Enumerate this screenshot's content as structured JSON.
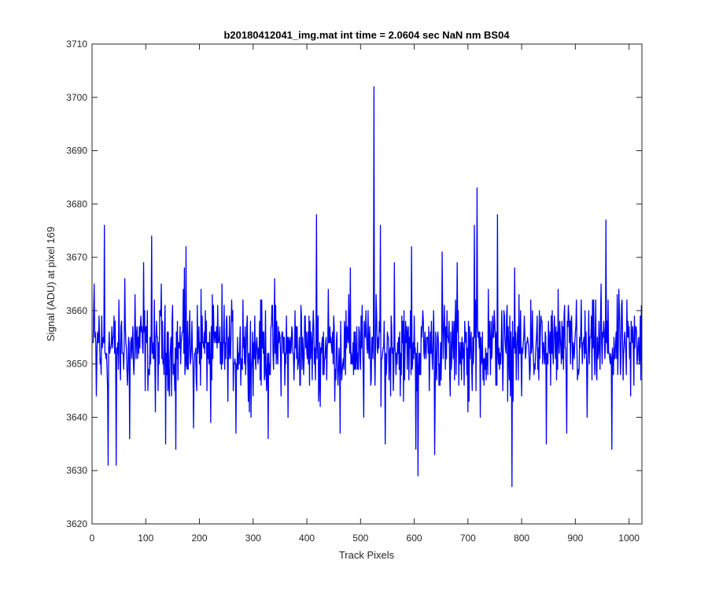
{
  "chart_data": {
    "type": "line",
    "title": "b20180412041_img.mat int time = 2.0604 sec  NaN nm BS04",
    "xlabel": "Track Pixels",
    "ylabel": "Signal (ADU) at pixel 169",
    "xlim": [
      0,
      1024
    ],
    "ylim": [
      3620,
      3710
    ],
    "xticks": [
      0,
      100,
      200,
      300,
      400,
      500,
      600,
      700,
      800,
      900,
      1000
    ],
    "yticks": [
      3620,
      3630,
      3640,
      3650,
      3660,
      3670,
      3680,
      3690,
      3700,
      3710
    ],
    "grid": false,
    "line_color": "#0000ff",
    "noise": {
      "mean": 3653,
      "amplitude": 9
    },
    "series": [
      {
        "x": [
          1,
          4,
          8,
          13,
          17,
          21,
          23,
          30,
          37,
          45,
          52,
          61,
          70,
          80,
          88,
          96,
          106,
          111,
          118,
          129,
          137,
          150,
          156,
          172,
          175,
          189,
          203,
          221,
          242,
          268,
          281,
          296,
          312,
          328,
          340,
          365,
          389,
          418,
          425,
          440,
          462,
          481,
          506,
          523,
          525,
          527,
          537,
          546,
          563,
          580,
          595,
          603,
          607,
          620,
          638,
          652,
          667,
          680,
          700,
          712,
          717,
          723,
          738,
          755,
          765,
          782,
          787,
          800,
          817,
          846,
          868,
          884,
          902,
          922,
          948,
          957,
          968,
          981,
          1003,
          1016,
          1023
        ],
        "y": [
          3654,
          3665,
          3644,
          3659,
          3648,
          3655,
          3676,
          3631,
          3657,
          3631,
          3650,
          3666,
          3636,
          3663,
          3657,
          3669,
          3648,
          3674,
          3641,
          3665,
          3635,
          3661,
          3634,
          3668,
          3672,
          3638,
          3664,
          3639,
          3665,
          3637,
          3662,
          3640,
          3658,
          3636,
          3666,
          3640,
          3661,
          3678,
          3642,
          3664,
          3637,
          3668,
          3640,
          3651,
          3702,
          3646,
          3676,
          3635,
          3669,
          3643,
          3672,
          3634,
          3629,
          3656,
          3633,
          3671,
          3644,
          3669,
          3641,
          3676,
          3683,
          3640,
          3664,
          3678,
          3645,
          3627,
          3668,
          3644,
          3662,
          3635,
          3664,
          3637,
          3662,
          3640,
          3665,
          3677,
          3634,
          3664,
          3644,
          3651,
          3661
        ]
      }
    ]
  }
}
